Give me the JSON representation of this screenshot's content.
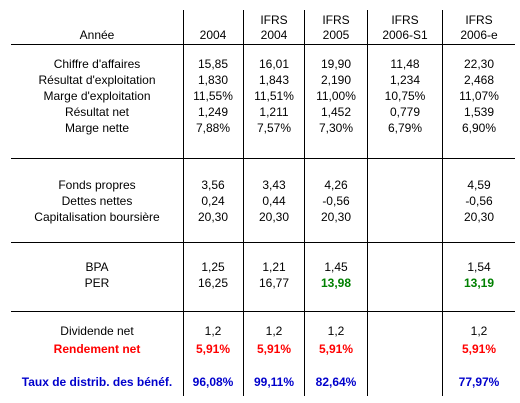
{
  "header": {
    "label": "Année",
    "cols": [
      {
        "top": "",
        "bottom": "2004"
      },
      {
        "top": "IFRS",
        "bottom": "2004"
      },
      {
        "top": "IFRS",
        "bottom": "2005"
      },
      {
        "top": "IFRS",
        "bottom": "2006-S1"
      },
      {
        "top": "IFRS",
        "bottom": "2006-e"
      }
    ]
  },
  "groups": [
    {
      "rows": [
        {
          "label": "Chiffre d'affaires",
          "values": [
            "15,85",
            "16,01",
            "19,90",
            "11,48",
            "22,30"
          ]
        },
        {
          "label": "Résultat d'exploitation",
          "values": [
            "1,830",
            "1,843",
            "2,190",
            "1,234",
            "2,468"
          ]
        },
        {
          "label": "Marge d'exploitation",
          "values": [
            "11,55%",
            "11,51%",
            "11,00%",
            "10,75%",
            "11,07%"
          ]
        },
        {
          "label": "Résultat net",
          "values": [
            "1,249",
            "1,211",
            "1,452",
            "0,779",
            "1,539"
          ]
        },
        {
          "label": "Marge nette",
          "values": [
            "7,88%",
            "7,57%",
            "7,30%",
            "6,79%",
            "6,90%"
          ]
        }
      ]
    },
    {
      "rows": [
        {
          "label": "Fonds propres",
          "values": [
            "3,56",
            "3,43",
            "4,26",
            "",
            "4,59"
          ]
        },
        {
          "label": "Dettes nettes",
          "values": [
            "0,24",
            "0,44",
            "-0,56",
            "",
            "-0,56"
          ]
        },
        {
          "label": "Capitalisation boursière",
          "values": [
            "20,30",
            "20,30",
            "20,30",
            "",
            "20,30"
          ]
        }
      ]
    },
    {
      "rows": [
        {
          "label": "BPA",
          "values": [
            "1,25",
            "1,21",
            "1,45",
            "",
            "1,54"
          ]
        },
        {
          "label": "PER",
          "values": [
            "16,25",
            "16,77",
            "13,98",
            "",
            "13,19"
          ],
          "highlight_color": "#008000"
        }
      ]
    },
    {
      "rows": [
        {
          "label": "Dividende net",
          "values": [
            "1,2",
            "1,2",
            "1,2",
            "",
            "1,2"
          ]
        },
        {
          "label": "Rendement net",
          "values": [
            "5,91%",
            "5,91%",
            "5,91%",
            "",
            "5,91%"
          ],
          "color": "#ff0000"
        }
      ]
    },
    {
      "rows": [
        {
          "label": "Taux de distrib. des bénéf.",
          "values": [
            "96,08%",
            "99,11%",
            "82,64%",
            "",
            "77,97%"
          ],
          "color": "#0000cc"
        }
      ]
    }
  ]
}
